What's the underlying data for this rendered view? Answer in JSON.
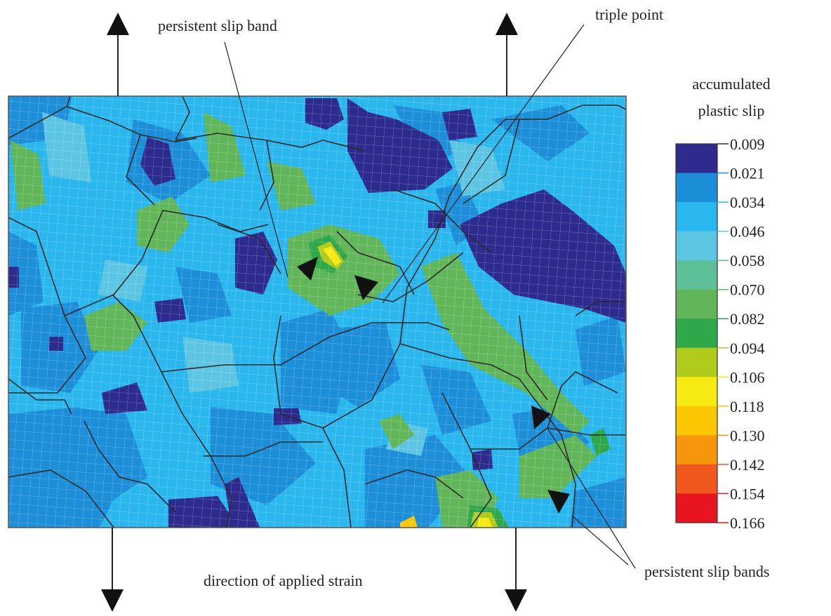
{
  "annotations": {
    "slip_band": "persistent slip band",
    "triple_point": "triple point",
    "slip_bands": "persistent slip bands",
    "strain": "direction of applied strain"
  },
  "colorbar": {
    "title": [
      "accumulated",
      "plastic slip"
    ],
    "labels": [
      "0.009",
      "0.021",
      "0.034",
      "0.046",
      "0.058",
      "0.070",
      "0.082",
      "0.094",
      "0.106",
      "0.118",
      "0.130",
      "0.142",
      "0.154",
      "0.166"
    ],
    "colors": [
      "#2e2b8e",
      "#1d8fd9",
      "#2ab7ee",
      "#5cc6e2",
      "#5cbf98",
      "#62b65a",
      "#2ea84a",
      "#b0cb1c",
      "#f6ea12",
      "#fcc700",
      "#f7950d",
      "#f0591e",
      "#e8141f"
    ]
  }
}
